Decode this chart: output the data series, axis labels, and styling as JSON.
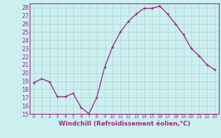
{
  "x": [
    0,
    1,
    2,
    3,
    4,
    5,
    6,
    7,
    8,
    9,
    10,
    11,
    12,
    13,
    14,
    15,
    16,
    17,
    18,
    19,
    20,
    21,
    22,
    23
  ],
  "y": [
    18.8,
    19.3,
    18.9,
    17.1,
    17.1,
    17.5,
    15.8,
    15.0,
    17.0,
    20.7,
    23.2,
    25.0,
    26.3,
    27.2,
    27.9,
    27.9,
    28.2,
    27.2,
    26.0,
    24.7,
    23.0,
    22.1,
    21.0,
    20.4
  ],
  "line_color": "#9b2c8a",
  "marker": "+",
  "marker_size": 3,
  "bg_color": "#ccefef",
  "grid_color": "#b0d8d8",
  "xlabel": "Windchill (Refroidissement éolien,°C)",
  "xlabel_color": "#9b2c8a",
  "tick_color": "#9b2c8a",
  "ylim": [
    15,
    28.5
  ],
  "yticks": [
    15,
    16,
    17,
    18,
    19,
    20,
    21,
    22,
    23,
    24,
    25,
    26,
    27,
    28
  ],
  "xlim": [
    -0.5,
    23.5
  ],
  "xticks": [
    0,
    1,
    2,
    3,
    4,
    5,
    6,
    7,
    8,
    9,
    10,
    11,
    12,
    13,
    14,
    15,
    16,
    17,
    18,
    19,
    20,
    21,
    22,
    23
  ],
  "spine_color": "#9b2c8a",
  "line_width": 1.0,
  "font_size": 6.0,
  "xlabel_fontsize": 6.5
}
